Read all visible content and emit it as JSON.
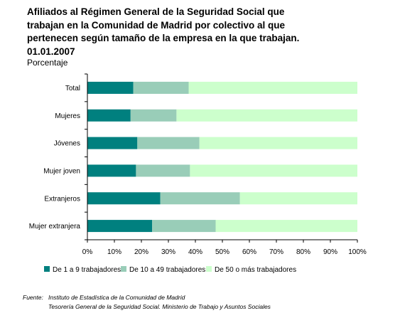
{
  "title": "Afiliados al Régimen General de la Seguridad Social que trabajan en la Comunidad de Madrid por colectivo al que pertenecen según tamaño de la empresa en la que trabajan. 01.01.2007",
  "subtitle": "Porcentaje",
  "chart_data": {
    "type": "bar",
    "orientation": "horizontal",
    "stacked": true,
    "categories": [
      "Total",
      "Mujeres",
      "Jóvenes",
      "Mujer joven",
      "Extranjeros",
      "Mujer extranjera"
    ],
    "series": [
      {
        "name": "De 1 a 9 trabajadores",
        "color": "#00807f",
        "values": [
          17,
          16,
          18.5,
          18,
          27,
          24
        ]
      },
      {
        "name": "De 10 a 49 trabajadores",
        "color": "#99cdb8",
        "values": [
          20.5,
          17,
          23,
          20,
          29.5,
          23.5
        ]
      },
      {
        "name": "De 50 o más trabajadores",
        "color": "#ccffcc",
        "values": [
          62.5,
          67,
          58.5,
          62,
          43.5,
          52.5
        ]
      }
    ],
    "xlim": [
      0,
      100
    ],
    "xticks": [
      "0%",
      "10%",
      "20%",
      "30%",
      "40%",
      "50%",
      "60%",
      "70%",
      "80%",
      "90%",
      "100%"
    ],
    "grid": false,
    "legend_position": "bottom"
  },
  "source": {
    "label": "Fuente:",
    "line1": "Instituto de Estadística de la Comunidad de Madrid",
    "line2": "Tesorería General de la Seguridad Social. Ministerio de Trabajo y Asuntos Sociales"
  }
}
